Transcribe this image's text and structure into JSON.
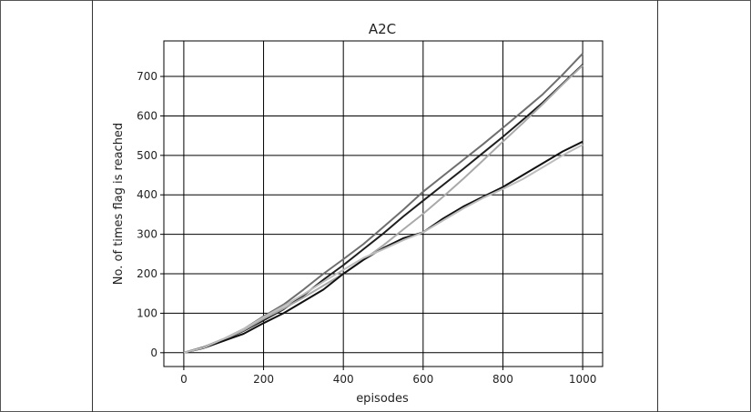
{
  "chart_data": {
    "type": "line",
    "title": "A2C",
    "xlabel": "episodes",
    "ylabel": "No. of times flag is reached",
    "xlim": [
      -50,
      1050
    ],
    "ylim": [
      -35,
      790
    ],
    "xticks": [
      0,
      200,
      400,
      600,
      800,
      1000
    ],
    "yticks": [
      0,
      100,
      200,
      300,
      400,
      500,
      600,
      700
    ],
    "grid": true,
    "series": [
      {
        "color": "#6e6e6e",
        "x": [
          0,
          50,
          100,
          150,
          200,
          250,
          300,
          350,
          400,
          450,
          500,
          550,
          600,
          650,
          700,
          750,
          800,
          850,
          900,
          950,
          1000
        ],
        "y": [
          0,
          14,
          35,
          60,
          92,
          122,
          160,
          200,
          237,
          275,
          318,
          362,
          408,
          448,
          488,
          528,
          570,
          612,
          655,
          705,
          758
        ]
      },
      {
        "color": "#1e1e1e",
        "x": [
          0,
          50,
          100,
          150,
          200,
          250,
          300,
          350,
          400,
          450,
          500,
          550,
          600,
          650,
          700,
          750,
          800,
          850,
          900,
          950,
          1000
        ],
        "y": [
          0,
          14,
          32,
          55,
          82,
          110,
          145,
          185,
          222,
          262,
          302,
          345,
          385,
          425,
          465,
          506,
          547,
          590,
          634,
          682,
          730
        ]
      },
      {
        "color": "#a9a9a9",
        "x": [
          0,
          50,
          100,
          150,
          200,
          250,
          300,
          350,
          400,
          450,
          500,
          550,
          600,
          650,
          700,
          750,
          800,
          850,
          900,
          950,
          1000
        ],
        "y": [
          0,
          13,
          33,
          57,
          86,
          112,
          140,
          170,
          200,
          235,
          272,
          312,
          352,
          395,
          440,
          487,
          535,
          582,
          630,
          680,
          728
        ]
      },
      {
        "color": "#111111",
        "x": [
          0,
          50,
          100,
          150,
          200,
          250,
          300,
          350,
          400,
          450,
          500,
          550,
          600,
          650,
          700,
          750,
          800,
          850,
          900,
          950,
          1000
        ],
        "y": [
          0,
          12,
          30,
          48,
          75,
          100,
          130,
          160,
          200,
          235,
          265,
          290,
          305,
          340,
          370,
          395,
          420,
          450,
          480,
          510,
          535
        ]
      },
      {
        "color": "#bdbdbd",
        "x": [
          0,
          50,
          100,
          150,
          200,
          250,
          300,
          350,
          400,
          450,
          500,
          550,
          600,
          650,
          700,
          750,
          800,
          850,
          900,
          950,
          1000
        ],
        "y": [
          0,
          13,
          35,
          60,
          90,
          118,
          148,
          180,
          210,
          240,
          262,
          285,
          305,
          335,
          365,
          392,
          415,
          440,
          470,
          500,
          527
        ]
      }
    ]
  }
}
